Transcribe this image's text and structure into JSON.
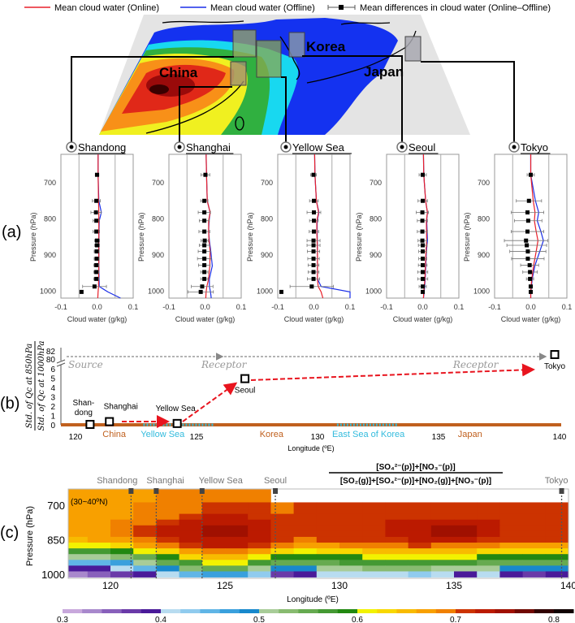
{
  "legend": {
    "online": "Mean cloud water (Online)",
    "offline": "Mean cloud water (Offline)",
    "diff": "Mean differences in cloud water (Online–Offline)"
  },
  "map": {
    "labels": [
      "China",
      "Korea",
      "Japan"
    ]
  },
  "panel_labels": [
    "(a)",
    "(b)",
    "(c)"
  ],
  "colors": {
    "online": "#e8202a",
    "offline": "#1a2ee8",
    "land": "#c0601e",
    "sea": "#33bbdd",
    "arrow": "#e8141e",
    "guide": "#888888"
  },
  "chart_data": [
    {
      "type": "line",
      "panel": "(a)",
      "xlabel": "Cloud water (g/kg)",
      "ylabel": "Pressure (hPa)",
      "xlim": [
        -0.1,
        0.1
      ],
      "xticks": [
        "-0.1",
        "0.0",
        "0.1"
      ],
      "xgrid": [
        -0.05,
        0.05
      ],
      "yticks": [
        700,
        800,
        900,
        1000
      ],
      "ylim": [
        620,
        1025
      ],
      "diff_levels": [
        678,
        750,
        782,
        805,
        835,
        860,
        873,
        890,
        910,
        928,
        947,
        966,
        987,
        1002
      ],
      "stations": [
        {
          "name": "Shandong",
          "diff_mean": [
            0,
            -0.002,
            -0.003,
            -0.002,
            -0.002,
            0,
            0,
            -0.001,
            -0.001,
            -0.002,
            -0.002,
            -0.002,
            -0.007,
            -0.043
          ],
          "diff_err": [
            0.005,
            0.011,
            0.014,
            0.009,
            0.009,
            0.007,
            0.007,
            0.007,
            0.007,
            0.007,
            0.007,
            0.007,
            0.033,
            0.003
          ],
          "online": {
            "p": [
              620,
              678,
              750,
              782,
              805,
              860,
              930,
              987,
              1002,
              1025
            ],
            "v": [
              0.003,
              0.003,
              0.004,
              0.005,
              0.005,
              0.005,
              0.005,
              0.004,
              0.003,
              0.002
            ]
          },
          "offline": {
            "p": [
              620,
              678,
              750,
              782,
              805,
              860,
              930,
              987,
              1002,
              1025
            ],
            "v": [
              0.003,
              0.003,
              0.005,
              0.012,
              0.006,
              0.005,
              0.005,
              0.006,
              0.03,
              0.065
            ]
          }
        },
        {
          "name": "Shanghai",
          "diff_mean": [
            0.001,
            -0.002,
            -0.002,
            -0.002,
            -0.002,
            -0.001,
            -0.002,
            -0.002,
            -0.002,
            -0.002,
            -0.002,
            -0.002,
            -0.008,
            -0.012
          ],
          "diff_err": [
            0.012,
            0.01,
            0.017,
            0.014,
            0.015,
            0.01,
            0.014,
            0.017,
            0.019,
            0.016,
            0.01,
            0.01,
            0.03,
            0.035
          ],
          "online": {
            "p": [
              620,
              678,
              750,
              782,
              805,
              835,
              860,
              890,
              930,
              966,
              987,
              1002,
              1025
            ],
            "v": [
              0.003,
              0.004,
              0.006,
              0.014,
              0.01,
              0.01,
              0.011,
              0.014,
              0.013,
              0.01,
              0.005,
              0.003,
              0.002
            ]
          },
          "offline": {
            "p": [
              620,
              678,
              750,
              782,
              805,
              835,
              860,
              890,
              930,
              966,
              987,
              1002,
              1025
            ],
            "v": [
              0.003,
              0.004,
              0.006,
              0.014,
              0.011,
              0.01,
              0.012,
              0.016,
              0.02,
              0.012,
              0.012,
              0.015,
              0.017
            ]
          }
        },
        {
          "name": "Yellow Sea",
          "diff_mean": [
            -0.001,
            0,
            0,
            0,
            0,
            -0.001,
            -0.001,
            -0.001,
            -0.001,
            -0.001,
            -0.001,
            -0.001,
            -0.006,
            -0.09
          ],
          "diff_err": [
            0.008,
            0.012,
            0.019,
            0.012,
            0.013,
            0.018,
            0.018,
            0.017,
            0.016,
            0.015,
            0.015,
            0.017,
            0.06,
            0.003
          ],
          "online": {
            "p": [
              620,
              678,
              750,
              782,
              805,
              835,
              890,
              966,
              987,
              1002,
              1025
            ],
            "v": [
              0.002,
              0.003,
              0.007,
              0.013,
              0.008,
              0.008,
              0.01,
              0.01,
              0.012,
              0.02,
              0.025
            ]
          },
          "offline": {
            "p": [
              620,
              678,
              750,
              782,
              805,
              835,
              890,
              966,
              987,
              1002,
              1025
            ],
            "v": [
              0.002,
              0.003,
              0.007,
              0.014,
              0.009,
              0.009,
              0.01,
              0.01,
              0.02,
              0.1,
              0.1
            ]
          }
        },
        {
          "name": "Seoul",
          "diff_mean": [
            0,
            0,
            -0.001,
            -0.001,
            -0.001,
            -0.001,
            0,
            0,
            0,
            0,
            0,
            0,
            0,
            0
          ],
          "diff_err": [
            0.01,
            0.013,
            0.017,
            0.014,
            0.014,
            0.012,
            0.012,
            0.011,
            0.011,
            0.012,
            0.014,
            0.014,
            0.01,
            0.004
          ],
          "online": {
            "p": [
              620,
              678,
              750,
              782,
              805,
              860,
              890,
              966,
              1002,
              1025
            ],
            "v": [
              0.002,
              0.003,
              0.008,
              0.013,
              0.01,
              0.011,
              0.009,
              0.006,
              0.003,
              0.002
            ]
          },
          "offline": {
            "p": [
              620,
              678,
              750,
              782,
              805,
              860,
              890,
              966,
              1002,
              1025
            ],
            "v": [
              0.002,
              0.003,
              0.008,
              0.013,
              0.011,
              0.013,
              0.01,
              0.007,
              0.004,
              0.002
            ]
          }
        },
        {
          "name": "Tokyo",
          "diff_mean": [
            0,
            -0.005,
            -0.009,
            -0.007,
            -0.009,
            -0.013,
            -0.011,
            -0.008,
            -0.008,
            -0.003,
            -0.002,
            -0.002,
            0,
            0
          ],
          "diff_err": [
            0.01,
            0.035,
            0.045,
            0.038,
            0.045,
            0.06,
            0.055,
            0.05,
            0.045,
            0.025,
            0.02,
            0.01,
            0.005,
            0.003
          ],
          "online": {
            "p": [
              620,
              678,
              750,
              782,
              805,
              835,
              860,
              890,
              928,
              966,
              987,
              1002,
              1025
            ],
            "v": [
              0,
              0,
              0.007,
              0.012,
              0.01,
              0.015,
              0.02,
              0.015,
              0.008,
              0.003,
              0.001,
              0,
              0
            ]
          },
          "offline": {
            "p": [
              620,
              678,
              750,
              782,
              805,
              835,
              860,
              890,
              928,
              966,
              987,
              1002,
              1025
            ],
            "v": [
              0,
              0,
              0.013,
              0.022,
              0.018,
              0.028,
              0.035,
              0.025,
              0.012,
              0.004,
              0.002,
              0,
              0
            ]
          }
        }
      ]
    },
    {
      "type": "scatter",
      "panel": "(b)",
      "ylabel_num": "Std. of Qc at 850hPa",
      "ylabel_den": "Std. of Qc at 1000hPa",
      "xlabel": "Longitude (ºE)",
      "xlim": [
        118.6,
        140.1
      ],
      "xticks": [
        "120",
        "125",
        "130",
        "135",
        "140"
      ],
      "yticks": [
        "0",
        "1",
        "2",
        "3",
        "4",
        "5",
        "6"
      ],
      "yticks_upper": [
        "80",
        "82"
      ],
      "points": [
        {
          "label": [
            "Shan-",
            "dong"
          ],
          "lon": 120.6,
          "value": 0.0
        },
        {
          "label": [
            "Shanghai"
          ],
          "lon": 121.4,
          "value": 0.3
        },
        {
          "label": [
            "Yellow  Sea"
          ],
          "lon": 124.2,
          "value": 0.1
        },
        {
          "label": [
            "Seoul"
          ],
          "lon": 127.0,
          "value": 4.9
        },
        {
          "label": [
            "Tokyo"
          ],
          "lon": 139.8,
          "value": 81
        }
      ],
      "annotations": [
        {
          "text": "Source",
          "lon": 118.9
        },
        {
          "text": "Receptor",
          "lon": 125.2
        },
        {
          "text": "Receptor",
          "lon": 135.6
        }
      ],
      "regions": [
        {
          "name": "China",
          "type": "land",
          "label_lon": 121.6
        },
        {
          "name": "Yellow Sea",
          "type": "sea",
          "label_lon": 123.6,
          "from": 122.8,
          "to": 125.7
        },
        {
          "name": "Korea",
          "type": "land",
          "label_lon": 128.1
        },
        {
          "name": "East Sea of Korea",
          "type": "sea",
          "label_lon": 132.1,
          "from": 130.8,
          "to": 133.3
        },
        {
          "name": "Japan",
          "type": "land",
          "label_lon": 136.3
        }
      ]
    },
    {
      "type": "heatmap",
      "panel": "(c)",
      "title_num": "[SO₄²⁻(p)]+[NO₃⁻(p)]",
      "title_den": "[SO₂(g)]+[SO₄²⁻(p)]+[NO₂(g)]+[NO₃⁻(p)]",
      "note": "(30~40ºN)",
      "xlabel": "Longitude (ºE)",
      "ylabel": "Pressure (hPa)",
      "xlim": [
        118.3,
        140.0
      ],
      "ylim": [
        629,
        1018
      ],
      "xticks": [
        "120",
        "125",
        "130",
        "135",
        "140"
      ],
      "yticks": [
        "700",
        "850",
        "1000"
      ],
      "stations": [
        {
          "name": "Shandong",
          "lon": 120.9
        },
        {
          "name": "Shanghai",
          "lon": 122.0
        },
        {
          "name": "Yellow  Sea",
          "lon": 124.0
        },
        {
          "name": "Seoul",
          "lon": 127.2
        },
        {
          "name": "Tokyo",
          "lon": 139.7
        }
      ],
      "colorbar": {
        "min": 0.3,
        "max": 0.82,
        "step": 0.02,
        "ticks": [
          "0.3",
          "0.4",
          "0.5",
          "0.6",
          "0.7",
          "0.8"
        ],
        "colors": [
          "#c8a8dc",
          "#a888cc",
          "#8860bb",
          "#6a3aa8",
          "#4a1a99",
          "#b8dcf0",
          "#90cbee",
          "#60b5e6",
          "#3aa0dd",
          "#1888cc",
          "#a8cc98",
          "#88bb70",
          "#66aa50",
          "#449933",
          "#228811",
          "#f2f200",
          "#f8d800",
          "#f8bb00",
          "#f8a000",
          "#f08000",
          "#cc3300",
          "#bb1a00",
          "#a01000",
          "#700800",
          "#300000",
          "#100000"
        ]
      },
      "lons": [
        118.5,
        119.5,
        120.5,
        121.5,
        122.5,
        123.5,
        124.5,
        125.5,
        126.5,
        127.5,
        128.5,
        129.5,
        130.5,
        131.5,
        132.5,
        133.5,
        134.5,
        135.5,
        136.5,
        137.5,
        138.5,
        139.5
      ],
      "levels": [
        675,
        700,
        725,
        750,
        775,
        800,
        825,
        850,
        875,
        900,
        925,
        950,
        975,
        1000
      ],
      "values": [
        [
          0.66,
          0.66,
          0.66,
          0.67,
          0.68,
          0.68,
          0.68,
          0.68,
          0.68,
          null,
          null,
          null,
          null,
          null,
          null,
          null,
          null,
          null,
          null,
          null,
          null,
          null
        ],
        [
          0.66,
          0.66,
          0.67,
          0.68,
          0.68,
          0.68,
          0.71,
          0.71,
          0.71,
          0.68,
          0.71,
          0.71,
          0.71,
          0.71,
          0.71,
          0.71,
          0.71,
          0.71,
          0.71,
          0.71,
          0.71,
          0.71
        ],
        [
          0.66,
          0.66,
          0.67,
          0.68,
          0.68,
          0.69,
          0.71,
          0.71,
          0.71,
          0.69,
          0.71,
          0.71,
          0.71,
          0.71,
          0.71,
          0.71,
          0.71,
          0.71,
          0.71,
          0.71,
          0.71,
          0.71
        ],
        [
          0.66,
          0.66,
          0.67,
          0.68,
          0.69,
          0.71,
          0.72,
          0.72,
          0.71,
          0.71,
          0.71,
          0.71,
          0.71,
          0.71,
          0.71,
          0.71,
          0.71,
          0.71,
          0.71,
          0.71,
          0.71,
          0.71
        ],
        [
          0.66,
          0.67,
          0.68,
          0.69,
          0.71,
          0.72,
          0.72,
          0.72,
          0.72,
          0.71,
          0.71,
          0.71,
          0.71,
          0.71,
          0.72,
          0.72,
          0.72,
          0.72,
          0.72,
          0.71,
          0.71,
          0.71
        ],
        [
          0.66,
          0.67,
          0.68,
          0.7,
          0.72,
          0.72,
          0.74,
          0.74,
          0.72,
          0.71,
          0.71,
          0.71,
          0.71,
          0.71,
          0.72,
          0.73,
          0.74,
          0.74,
          0.73,
          0.71,
          0.71,
          0.71
        ],
        [
          0.66,
          0.67,
          0.68,
          0.7,
          0.72,
          0.73,
          0.74,
          0.74,
          0.73,
          0.71,
          0.7,
          0.71,
          0.71,
          0.71,
          0.72,
          0.73,
          0.74,
          0.74,
          0.73,
          0.71,
          0.7,
          0.71
        ],
        [
          0.65,
          0.66,
          0.67,
          0.69,
          0.71,
          0.72,
          0.73,
          0.73,
          0.72,
          0.7,
          0.69,
          0.7,
          0.7,
          0.71,
          0.71,
          0.72,
          0.72,
          0.72,
          0.71,
          0.7,
          0.7,
          0.7
        ],
        [
          0.6,
          0.61,
          0.63,
          0.66,
          0.69,
          0.71,
          0.72,
          0.72,
          0.7,
          0.68,
          0.67,
          0.67,
          0.68,
          0.68,
          0.69,
          0.7,
          0.69,
          0.69,
          0.68,
          0.67,
          0.67,
          0.67
        ],
        [
          0.56,
          0.57,
          0.58,
          0.6,
          0.63,
          0.67,
          0.69,
          0.69,
          0.67,
          0.62,
          0.61,
          0.62,
          0.63,
          0.64,
          0.64,
          0.65,
          0.64,
          0.64,
          0.63,
          0.62,
          0.62,
          0.62
        ],
        [
          0.5,
          0.51,
          0.53,
          0.55,
          0.59,
          0.62,
          0.64,
          0.65,
          0.61,
          0.58,
          0.58,
          0.58,
          0.59,
          0.6,
          0.61,
          0.61,
          0.6,
          0.6,
          0.59,
          0.58,
          0.58,
          0.58
        ],
        [
          0.44,
          0.45,
          0.47,
          0.5,
          0.54,
          0.57,
          0.6,
          0.61,
          0.56,
          0.54,
          0.54,
          0.55,
          0.56,
          0.57,
          0.57,
          0.57,
          0.56,
          0.56,
          0.55,
          0.54,
          0.54,
          0.54
        ],
        [
          0.38,
          0.39,
          0.41,
          0.45,
          0.48,
          0.52,
          0.54,
          0.55,
          0.5,
          0.49,
          0.49,
          0.5,
          0.51,
          0.52,
          0.52,
          0.52,
          0.51,
          0.51,
          0.5,
          0.49,
          0.49,
          0.49
        ],
        [
          0.33,
          0.34,
          0.36,
          0.38,
          0.4,
          0.44,
          0.46,
          0.46,
          0.42,
          0.36,
          0.38,
          0.4,
          0.4,
          0.41,
          0.4,
          0.42,
          0.4,
          0.38,
          0.4,
          0.38,
          0.36,
          0.38
        ]
      ]
    }
  ]
}
